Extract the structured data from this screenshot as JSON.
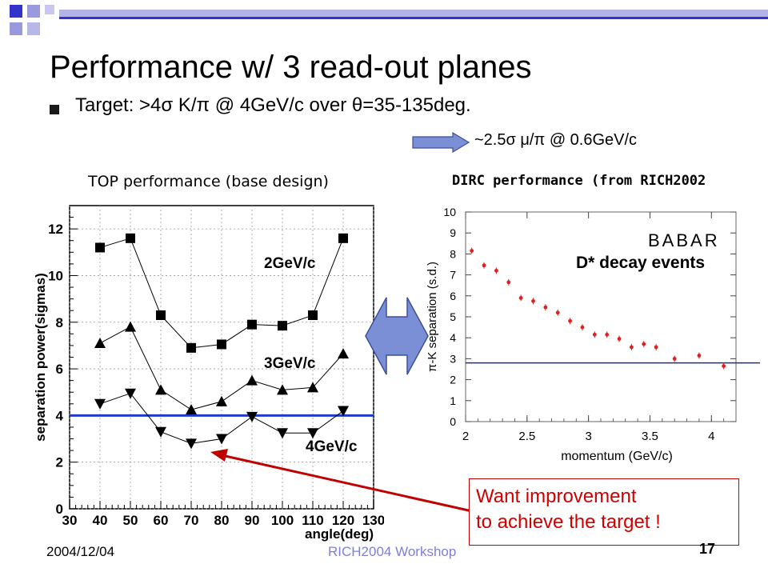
{
  "slide": {
    "title": "Performance w/ 3 read-out planes",
    "bullet": "Target: >4σ K/π @ 4GeV/c over θ=35-135deg.",
    "sub_note": "~2.5σ μ/π @ 0.6GeV/c",
    "callout_line1": "Want improvement",
    "callout_line2": "to achieve the target !",
    "footer_date": "2004/12/04",
    "footer_event": "RICH2004 Workshop",
    "footer_page": "17"
  },
  "colors": {
    "title_bar": "#3333cc",
    "deco_light": "#9999dd",
    "arrow_fill": "#7b8fd6",
    "callout_red": "#d00000",
    "threshold_line": "#1f3ad0",
    "dirc_points": "#e02020",
    "dirc_line": "#1f2f8f"
  },
  "icons": {
    "right_arrow": "right-arrow-icon",
    "double_arrow": "double-arrow-icon",
    "callout_arrow": "pointer-arrow-icon"
  },
  "chart_data": [
    {
      "type": "line",
      "title": "TOP performance (base design)",
      "xlabel": "angle(deg)",
      "ylabel": "separation power(sigmas)",
      "xlim": [
        30,
        130
      ],
      "ylim": [
        0,
        13
      ],
      "xticks": [
        30,
        40,
        50,
        60,
        70,
        80,
        90,
        100,
        110,
        120,
        130
      ],
      "yticks": [
        0,
        2,
        4,
        6,
        8,
        10,
        12
      ],
      "grid": true,
      "threshold": 4,
      "x": [
        40,
        50,
        60,
        70,
        80,
        90,
        100,
        110,
        120
      ],
      "series": [
        {
          "name": "2GeV/c",
          "marker": "square",
          "values": [
            11.2,
            11.6,
            8.3,
            6.9,
            7.05,
            7.9,
            7.85,
            8.3,
            11.6
          ]
        },
        {
          "name": "3GeV/c",
          "marker": "triangle-up",
          "values": [
            7.1,
            7.8,
            5.1,
            4.25,
            4.6,
            5.5,
            5.1,
            5.2,
            6.65
          ]
        },
        {
          "name": "4GeV/c",
          "marker": "triangle-down",
          "values": [
            4.5,
            4.95,
            3.3,
            2.8,
            3.0,
            3.95,
            3.25,
            3.25,
            4.2
          ]
        }
      ]
    },
    {
      "type": "scatter",
      "title": "DIRC performance (from RICH2002",
      "xlabel": "momentum (GeV/c)",
      "ylabel": "π-K separation (s.d.)",
      "xlim": [
        2,
        4.2
      ],
      "ylim": [
        0,
        10
      ],
      "xticks": [
        2,
        2.5,
        3,
        3.5,
        4
      ],
      "xtick_labels": [
        "2",
        "2.5",
        "3",
        "3.5",
        "4"
      ],
      "yticks": [
        0,
        1,
        2,
        3,
        4,
        5,
        6,
        7,
        8,
        9,
        10
      ],
      "grid": false,
      "annotation": "D* decay events",
      "logo": "BABAR",
      "threshold": 2.8,
      "points": [
        {
          "x": 2.05,
          "y": 8.15
        },
        {
          "x": 2.15,
          "y": 7.45
        },
        {
          "x": 2.25,
          "y": 7.2
        },
        {
          "x": 2.35,
          "y": 6.65
        },
        {
          "x": 2.45,
          "y": 5.9
        },
        {
          "x": 2.55,
          "y": 5.75
        },
        {
          "x": 2.65,
          "y": 5.45
        },
        {
          "x": 2.75,
          "y": 5.2
        },
        {
          "x": 2.85,
          "y": 4.8
        },
        {
          "x": 2.95,
          "y": 4.5
        },
        {
          "x": 3.05,
          "y": 4.15
        },
        {
          "x": 3.15,
          "y": 4.15
        },
        {
          "x": 3.25,
          "y": 3.95
        },
        {
          "x": 3.35,
          "y": 3.55
        },
        {
          "x": 3.45,
          "y": 3.7
        },
        {
          "x": 3.55,
          "y": 3.55
        },
        {
          "x": 3.7,
          "y": 3.0
        },
        {
          "x": 3.9,
          "y": 3.15
        },
        {
          "x": 4.1,
          "y": 2.65
        }
      ]
    }
  ]
}
